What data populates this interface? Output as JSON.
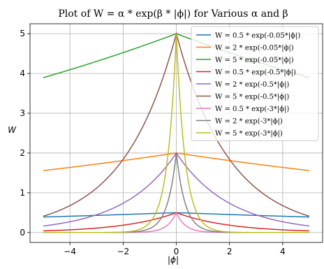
{
  "chart_data": {
    "type": "line",
    "title": "Plot of W = α * exp(β * |ϕ|) for Various α and β",
    "xlabel": "|ϕ|",
    "ylabel": "W",
    "xlim": [
      -5.5,
      5.5
    ],
    "ylim": [
      -0.25,
      5.25
    ],
    "xticks": [
      -4,
      -2,
      0,
      2,
      4
    ],
    "xtick_labels": [
      "−4",
      "−2",
      "0",
      "2",
      "4"
    ],
    "yticks": [
      0,
      1,
      2,
      3,
      4,
      5
    ],
    "ytick_labels": [
      "0",
      "1",
      "2",
      "3",
      "4",
      "5"
    ],
    "x_domain": [
      -5,
      5
    ],
    "grid": true,
    "legend_position": "top-right",
    "series": [
      {
        "name": "W = 0.5 * exp(-0.05*|ϕ|)",
        "alpha": 0.5,
        "beta": -0.05,
        "color": "#1f77b4"
      },
      {
        "name": "W = 2 * exp(-0.05*|ϕ|)",
        "alpha": 2,
        "beta": -0.05,
        "color": "#ff7f0e"
      },
      {
        "name": "W = 5 * exp(-0.05*|ϕ|)",
        "alpha": 5,
        "beta": -0.05,
        "color": "#2ca02c"
      },
      {
        "name": "W = 0.5 * exp(-0.5*|ϕ|)",
        "alpha": 0.5,
        "beta": -0.5,
        "color": "#d62728"
      },
      {
        "name": "W = 2 * exp(-0.5*|ϕ|)",
        "alpha": 2,
        "beta": -0.5,
        "color": "#9467bd"
      },
      {
        "name": "W = 5 * exp(-0.5*|ϕ|)",
        "alpha": 5,
        "beta": -0.5,
        "color": "#8c564b"
      },
      {
        "name": "W = 0.5 * exp(-3*|ϕ|)",
        "alpha": 0.5,
        "beta": -3,
        "color": "#e377c2"
      },
      {
        "name": "W = 2 * exp(-3*|ϕ|)",
        "alpha": 2,
        "beta": -3,
        "color": "#7f7f7f"
      },
      {
        "name": "W = 5 * exp(-3*|ϕ|)",
        "alpha": 5,
        "beta": -3,
        "color": "#bcbd22"
      }
    ]
  }
}
